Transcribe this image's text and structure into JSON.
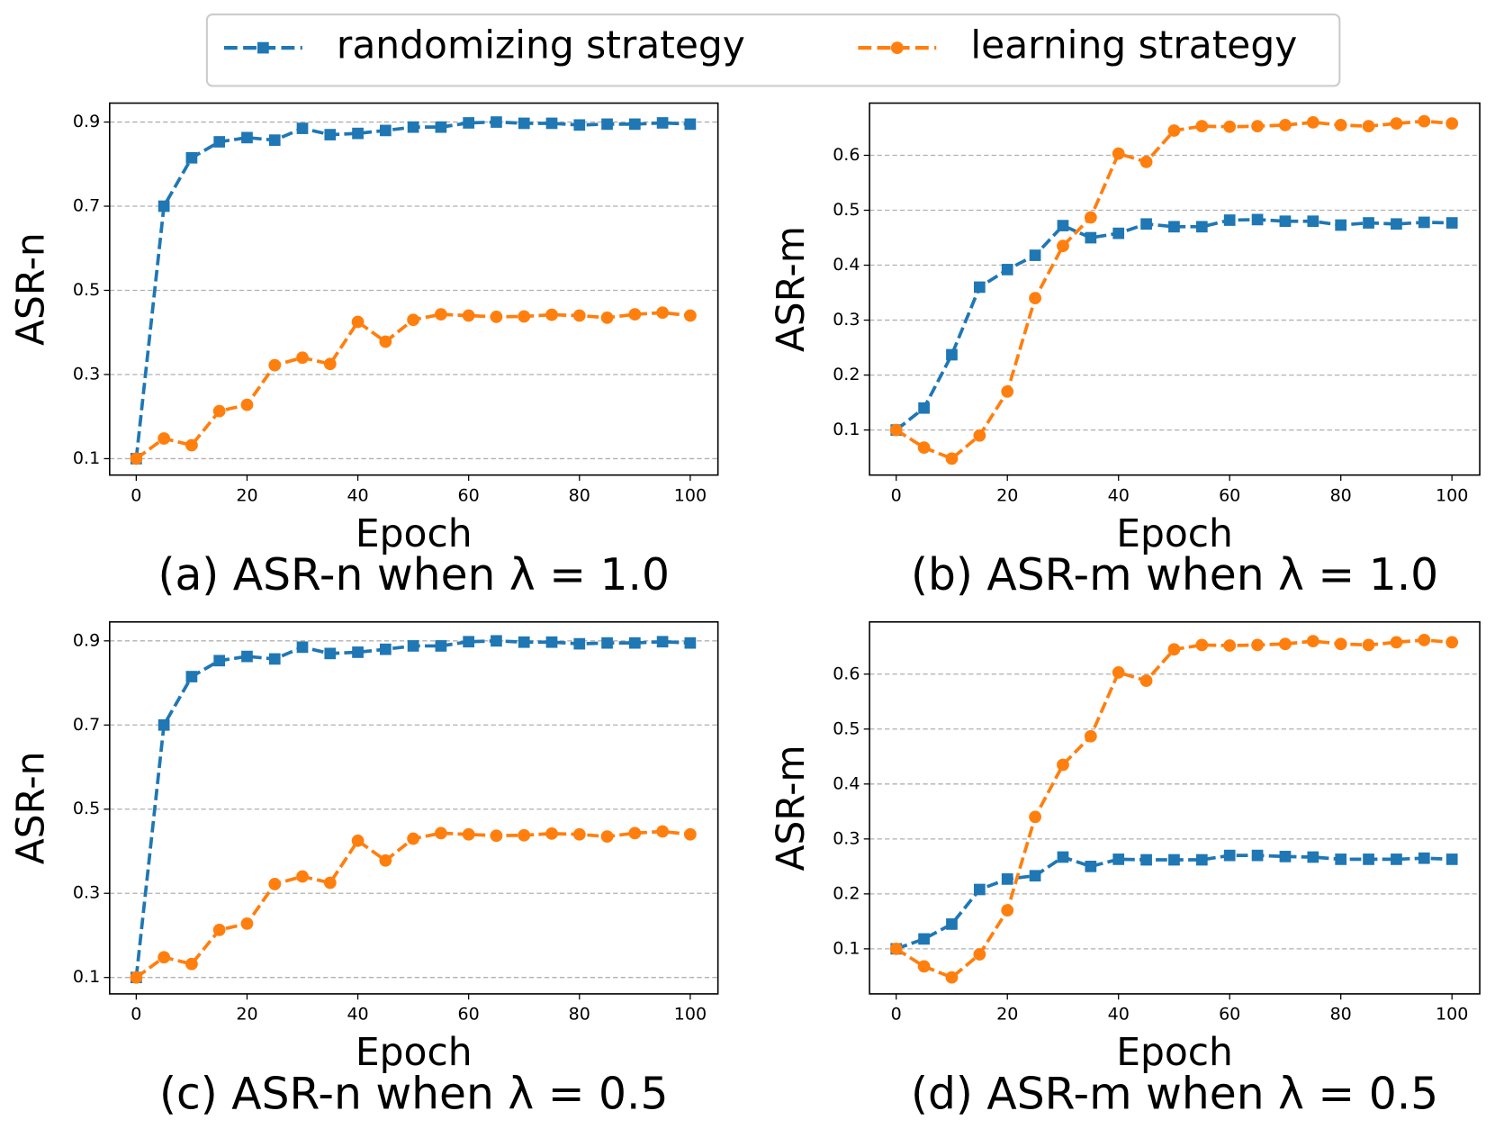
{
  "chart_data": [
    {
      "type": "line",
      "title": "(a) ASR-n when λ = 1.0",
      "xlabel": "Epoch",
      "ylabel": "ASR-n",
      "x": [
        0,
        5,
        10,
        15,
        20,
        25,
        30,
        35,
        40,
        45,
        50,
        55,
        60,
        65,
        70,
        75,
        80,
        85,
        90,
        95,
        100
      ],
      "xlim": [
        -4.8,
        105
      ],
      "xticks": [
        0,
        20,
        40,
        60,
        80,
        100
      ],
      "ylim": [
        0.061,
        0.945
      ],
      "yticks": [
        0.1,
        0.3,
        0.5,
        0.7,
        0.9
      ],
      "grid": "y",
      "series": [
        {
          "name": "randomizing strategy",
          "color": "#1f77b4",
          "marker": "square",
          "values": [
            0.1,
            0.7,
            0.815,
            0.853,
            0.863,
            0.857,
            0.885,
            0.87,
            0.873,
            0.88,
            0.888,
            0.888,
            0.898,
            0.9,
            0.897,
            0.897,
            0.893,
            0.895,
            0.895,
            0.898,
            0.895
          ]
        },
        {
          "name": "learning strategy",
          "color": "#ff7f0e",
          "marker": "circle",
          "values": [
            0.1,
            0.148,
            0.132,
            0.213,
            0.228,
            0.322,
            0.34,
            0.325,
            0.425,
            0.378,
            0.43,
            0.443,
            0.44,
            0.437,
            0.438,
            0.442,
            0.44,
            0.435,
            0.443,
            0.447,
            0.44
          ]
        }
      ]
    },
    {
      "type": "line",
      "title": "(b) ASR-m when λ = 1.0",
      "xlabel": "Epoch",
      "ylabel": "ASR-m",
      "x": [
        0,
        5,
        10,
        15,
        20,
        25,
        30,
        35,
        40,
        45,
        50,
        55,
        60,
        65,
        70,
        75,
        80,
        85,
        90,
        95,
        100
      ],
      "xlim": [
        -4.8,
        105
      ],
      "xticks": [
        0,
        20,
        40,
        60,
        80,
        100
      ],
      "ylim": [
        0.018,
        0.695
      ],
      "yticks": [
        0.1,
        0.2,
        0.3,
        0.4,
        0.5,
        0.6
      ],
      "grid": "y",
      "series": [
        {
          "name": "randomizing strategy",
          "color": "#1f77b4",
          "marker": "square",
          "values": [
            0.1,
            0.14,
            0.237,
            0.36,
            0.392,
            0.418,
            0.472,
            0.45,
            0.458,
            0.475,
            0.47,
            0.47,
            0.482,
            0.483,
            0.48,
            0.48,
            0.473,
            0.477,
            0.475,
            0.478,
            0.477
          ]
        },
        {
          "name": "learning strategy",
          "color": "#ff7f0e",
          "marker": "circle",
          "values": [
            0.1,
            0.068,
            0.048,
            0.09,
            0.17,
            0.34,
            0.435,
            0.487,
            0.603,
            0.588,
            0.645,
            0.653,
            0.652,
            0.653,
            0.655,
            0.66,
            0.655,
            0.653,
            0.658,
            0.662,
            0.658
          ]
        }
      ]
    },
    {
      "type": "line",
      "title": "(c) ASR-n when λ = 0.5",
      "xlabel": "Epoch",
      "ylabel": "ASR-n",
      "x": [
        0,
        5,
        10,
        15,
        20,
        25,
        30,
        35,
        40,
        45,
        50,
        55,
        60,
        65,
        70,
        75,
        80,
        85,
        90,
        95,
        100
      ],
      "xlim": [
        -4.8,
        105
      ],
      "xticks": [
        0,
        20,
        40,
        60,
        80,
        100
      ],
      "ylim": [
        0.061,
        0.945
      ],
      "yticks": [
        0.1,
        0.3,
        0.5,
        0.7,
        0.9
      ],
      "grid": "y",
      "series": [
        {
          "name": "randomizing strategy",
          "color": "#1f77b4",
          "marker": "square",
          "values": [
            0.1,
            0.7,
            0.815,
            0.853,
            0.863,
            0.857,
            0.885,
            0.87,
            0.873,
            0.88,
            0.888,
            0.888,
            0.898,
            0.9,
            0.897,
            0.897,
            0.893,
            0.895,
            0.895,
            0.898,
            0.895
          ]
        },
        {
          "name": "learning strategy",
          "color": "#ff7f0e",
          "marker": "circle",
          "values": [
            0.1,
            0.148,
            0.132,
            0.213,
            0.228,
            0.322,
            0.34,
            0.325,
            0.425,
            0.378,
            0.43,
            0.443,
            0.44,
            0.437,
            0.438,
            0.442,
            0.44,
            0.435,
            0.443,
            0.447,
            0.44
          ]
        }
      ]
    },
    {
      "type": "line",
      "title": "(d) ASR-m when λ = 0.5",
      "xlabel": "Epoch",
      "ylabel": "ASR-m",
      "x": [
        0,
        5,
        10,
        15,
        20,
        25,
        30,
        35,
        40,
        45,
        50,
        55,
        60,
        65,
        70,
        75,
        80,
        85,
        90,
        95,
        100
      ],
      "xlim": [
        -4.8,
        105
      ],
      "xticks": [
        0,
        20,
        40,
        60,
        80,
        100
      ],
      "ylim": [
        0.018,
        0.695
      ],
      "yticks": [
        0.1,
        0.2,
        0.3,
        0.4,
        0.5,
        0.6
      ],
      "grid": "y",
      "series": [
        {
          "name": "randomizing strategy",
          "color": "#1f77b4",
          "marker": "square",
          "values": [
            0.1,
            0.118,
            0.145,
            0.208,
            0.227,
            0.233,
            0.267,
            0.25,
            0.263,
            0.262,
            0.262,
            0.262,
            0.27,
            0.27,
            0.268,
            0.267,
            0.263,
            0.263,
            0.263,
            0.265,
            0.263
          ]
        },
        {
          "name": "learning strategy",
          "color": "#ff7f0e",
          "marker": "circle",
          "values": [
            0.1,
            0.068,
            0.048,
            0.09,
            0.17,
            0.34,
            0.435,
            0.487,
            0.603,
            0.588,
            0.645,
            0.653,
            0.652,
            0.653,
            0.655,
            0.66,
            0.655,
            0.653,
            0.658,
            0.662,
            0.658
          ]
        }
      ]
    }
  ]
}
